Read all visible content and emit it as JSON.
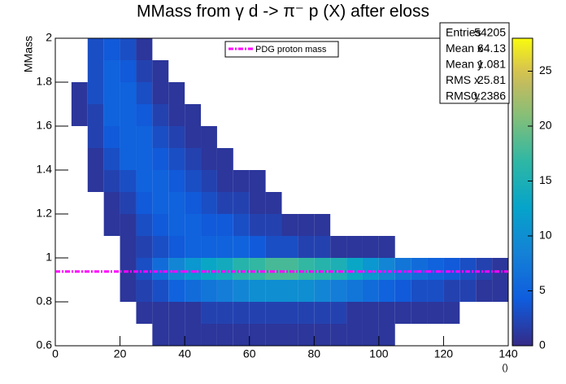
{
  "chart_data": {
    "type": "heatmap",
    "title": "MMass from γ d -> π⁻ p (X) after eloss",
    "xlabel": "()",
    "ylabel": "MMass",
    "xlim": [
      0,
      140
    ],
    "ylim": [
      0.6,
      2
    ],
    "zlim": [
      0,
      28
    ],
    "xticks": [
      0,
      20,
      40,
      60,
      80,
      100,
      120,
      140
    ],
    "yticks": [
      0.6,
      0.8,
      1,
      1.2,
      1.4,
      1.6,
      1.8,
      2
    ],
    "zticks": [
      0,
      5,
      10,
      15,
      20,
      25
    ],
    "colormap": "bird",
    "xbins": [
      0,
      5,
      10,
      15,
      20,
      25,
      30,
      35,
      40,
      45,
      50,
      55,
      60,
      65,
      70,
      75,
      80,
      85,
      90,
      95,
      100,
      105,
      110,
      115,
      120,
      125,
      130,
      135,
      140
    ],
    "ybins": [
      0.6,
      0.7,
      0.8,
      0.9,
      1.0,
      1.1,
      1.2,
      1.3,
      1.4,
      1.5,
      1.6,
      1.7,
      1.8,
      1.9,
      2.0
    ],
    "values": [
      [
        0,
        0,
        0,
        0,
        0,
        0,
        1,
        1,
        1,
        1,
        1,
        1,
        1,
        1,
        1,
        1,
        1,
        1,
        1,
        1,
        1,
        0,
        0,
        0,
        0,
        0,
        0,
        0
      ],
      [
        0,
        0,
        0,
        0,
        0,
        1,
        1,
        1,
        1,
        2,
        2,
        2,
        2,
        2,
        2,
        2,
        2,
        2,
        1,
        1,
        1,
        1,
        1,
        1,
        1,
        0,
        0,
        0
      ],
      [
        0,
        0,
        0,
        0,
        1,
        2,
        3,
        5,
        6,
        7,
        8,
        9,
        10,
        10,
        10,
        10,
        9,
        8,
        7,
        6,
        5,
        4,
        3,
        3,
        2,
        2,
        1,
        1
      ],
      [
        0,
        0,
        0,
        0,
        1,
        3,
        6,
        9,
        11,
        13,
        14,
        16,
        17,
        18,
        18,
        17,
        16,
        15,
        13,
        11,
        9,
        7,
        6,
        5,
        4,
        3,
        2,
        1
      ],
      [
        0,
        0,
        0,
        0,
        1,
        2,
        3,
        4,
        5,
        5,
        5,
        5,
        4,
        3,
        3,
        2,
        2,
        1,
        1,
        1,
        1,
        0,
        0,
        0,
        0,
        0,
        0,
        0
      ],
      [
        0,
        0,
        0,
        1,
        1,
        3,
        4,
        5,
        5,
        4,
        4,
        3,
        2,
        2,
        1,
        1,
        1,
        0,
        0,
        0,
        0,
        0,
        0,
        0,
        0,
        0,
        0,
        0
      ],
      [
        0,
        0,
        0,
        1,
        2,
        4,
        5,
        5,
        4,
        3,
        2,
        2,
        1,
        1,
        0,
        0,
        0,
        0,
        0,
        0,
        0,
        0,
        0,
        0,
        0,
        0,
        0,
        0
      ],
      [
        0,
        0,
        1,
        2,
        3,
        5,
        5,
        4,
        3,
        2,
        1,
        1,
        1,
        0,
        0,
        0,
        0,
        0,
        0,
        0,
        0,
        0,
        0,
        0,
        0,
        0,
        0,
        0
      ],
      [
        0,
        0,
        1,
        3,
        5,
        5,
        4,
        3,
        2,
        1,
        1,
        0,
        0,
        0,
        0,
        0,
        0,
        0,
        0,
        0,
        0,
        0,
        0,
        0,
        0,
        0,
        0,
        0
      ],
      [
        0,
        0,
        2,
        4,
        5,
        5,
        3,
        2,
        1,
        1,
        0,
        0,
        0,
        0,
        0,
        0,
        0,
        0,
        0,
        0,
        0,
        0,
        0,
        0,
        0,
        0,
        0,
        0
      ],
      [
        0,
        1,
        2,
        5,
        5,
        4,
        2,
        1,
        1,
        0,
        0,
        0,
        0,
        0,
        0,
        0,
        0,
        0,
        0,
        0,
        0,
        0,
        0,
        0,
        0,
        0,
        0,
        0
      ],
      [
        0,
        1,
        3,
        5,
        5,
        3,
        1,
        1,
        0,
        0,
        0,
        0,
        0,
        0,
        0,
        0,
        0,
        0,
        0,
        0,
        0,
        0,
        0,
        0,
        0,
        0,
        0,
        0
      ],
      [
        0,
        0,
        3,
        5,
        4,
        2,
        1,
        0,
        0,
        0,
        0,
        0,
        0,
        0,
        0,
        0,
        0,
        0,
        0,
        0,
        0,
        0,
        0,
        0,
        0,
        0,
        0,
        0
      ],
      [
        0,
        0,
        3,
        4,
        3,
        1,
        0,
        0,
        0,
        0,
        0,
        0,
        0,
        0,
        0,
        0,
        0,
        0,
        0,
        0,
        0,
        0,
        0,
        0,
        0,
        0,
        0,
        0
      ]
    ],
    "reference_line": {
      "value": 0.938,
      "label": "PDG proton mass",
      "color": "#ff00ff"
    },
    "stats": [
      {
        "name": "Entries",
        "value": 54205
      },
      {
        "name": "Mean x",
        "value": 64.13
      },
      {
        "name": "Mean y",
        "value": 1.081
      },
      {
        "name": "RMS x",
        "value": 25.81
      },
      {
        "name": "RMS y",
        "value": 0.2386
      }
    ]
  }
}
